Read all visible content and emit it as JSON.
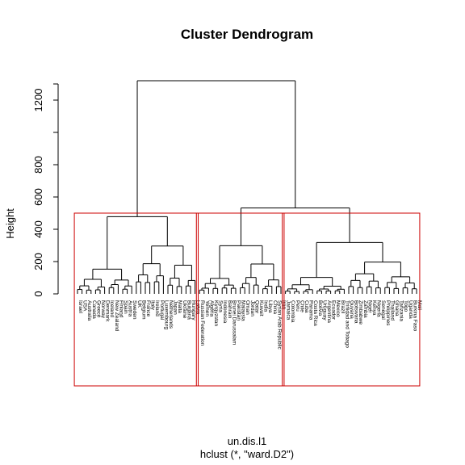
{
  "chart_data": {
    "type": "dendrogram",
    "title": "Cluster Dendrogram",
    "xlabel": "un.dis.l1",
    "sublabel": "hclust (*, \"ward.D2\")",
    "ylabel": "Height",
    "yticks": [
      0,
      200,
      400,
      600,
      800,
      1200
    ],
    "ylim": [
      0,
      1330
    ],
    "root_height": 1320,
    "cut_height": 500,
    "highlight_color": "#cc0000",
    "clusters": [
      {
        "height": 478,
        "box_color": "#cc0000",
        "labels": [
          "Israel",
          "USA",
          "Australia",
          "Canada",
          "Greece",
          "Norway",
          "Denmark",
          "Iceland",
          "New Zealand",
          "Finland",
          "Spain",
          "Austria",
          "Sweden",
          "UK",
          "Belgium",
          "France",
          "Italy",
          "Ireland",
          "Portugal",
          "Luxembourg",
          "Netherlands",
          "Japan",
          "Malta",
          "Ukraine",
          "Bulgaria",
          "Hungary",
          "Latvia"
        ]
      },
      {
        "height": 298,
        "box_color": "#cc0000",
        "labels": [
          "Russian Federation",
          "Yemen",
          "Algeria",
          "Kyrgyzstan",
          "Syria",
          "Indonesia",
          "Bahrain",
          "Brunei Darussalam",
          "Pakistan",
          "Malaysia",
          "Oman",
          "Jordan",
          "Qatar",
          "Kuwait",
          "India",
          "Libya",
          "China",
          "Syrian Arab Republic",
          "Iran"
        ]
      },
      {
        "height": 318,
        "box_color": "#cc0000",
        "labels": [
          "Jamaica",
          "Colombia",
          "Peru",
          "Chile",
          "Cuba",
          "Panama",
          "Costa Rica",
          "Bolivia",
          "Uruguay",
          "Argentina",
          "Ecuador",
          "Mexico",
          "Brazil",
          "Trinidad and Tobago",
          "Guyana",
          "Botswana",
          "Zimbabwe",
          "Zambia",
          "Niger",
          "Kenya",
          "Nigeria",
          "Senegal",
          "Philippines",
          "Thailand",
          "Ghana",
          "Tanzania",
          "Togo",
          "Uganda",
          "Burkina Faso",
          "Mali"
        ]
      }
    ],
    "merge_height_cluster2_3": 532
  }
}
